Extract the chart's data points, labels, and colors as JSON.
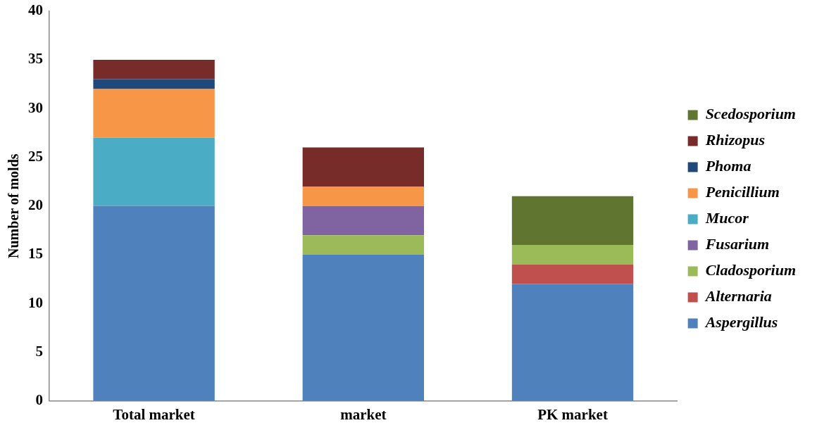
{
  "chart_data": {
    "type": "bar",
    "stacked": true,
    "ylabel": "Number of molds",
    "categories": [
      "Total market",
      "market",
      "PK market"
    ],
    "ylim": [
      0,
      40
    ],
    "yticks": [
      0,
      5,
      10,
      15,
      20,
      25,
      30,
      35,
      40
    ],
    "grid": false,
    "legend": "right",
    "series": [
      {
        "name": "Aspergillus",
        "color": "#4f81bd",
        "values": [
          20,
          15,
          12
        ]
      },
      {
        "name": "Alternaria",
        "color": "#c0504d",
        "values": [
          null,
          null,
          2
        ]
      },
      {
        "name": "Cladosporium",
        "color": "#9bbb59",
        "values": [
          null,
          2,
          2
        ]
      },
      {
        "name": "Fusarium",
        "color": "#8064a2",
        "values": [
          null,
          3,
          null
        ]
      },
      {
        "name": "Mucor",
        "color": "#4bacc6",
        "values": [
          7,
          null,
          null
        ]
      },
      {
        "name": "Penicillium",
        "color": "#f79646",
        "values": [
          5,
          2,
          null
        ]
      },
      {
        "name": "Phoma",
        "color": "#1f497d",
        "values": [
          1,
          null,
          null
        ]
      },
      {
        "name": "Rhizopus",
        "color": "#772c2a",
        "values": [
          2,
          4,
          null
        ]
      },
      {
        "name": "Scedosporium",
        "color": "#5f7530",
        "values": [
          null,
          null,
          5
        ]
      }
    ]
  }
}
